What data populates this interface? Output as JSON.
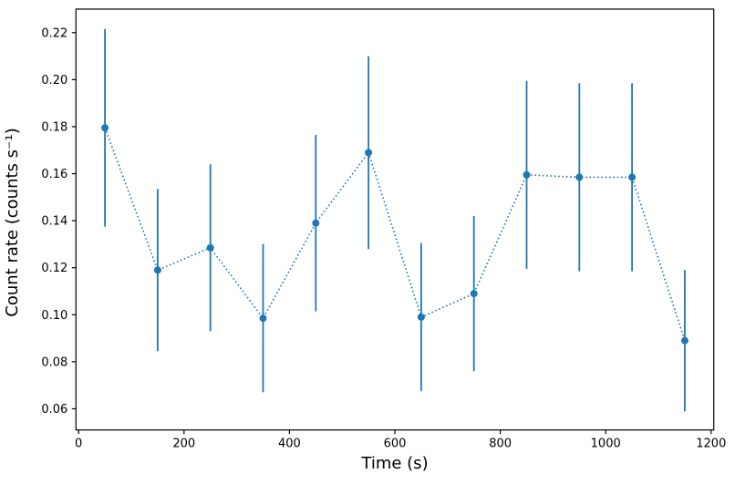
{
  "figure": {
    "background": "#ffffff",
    "spine_color": "#000000",
    "tick_color": "#000000",
    "text_color": "#000000"
  },
  "chart_data": {
    "type": "line",
    "subtype": "errorbar",
    "title": "",
    "xlabel": "Time (s)",
    "ylabel": "Count rate (counts s⁻¹)",
    "x": [
      50,
      150,
      250,
      350,
      450,
      550,
      650,
      750,
      850,
      950,
      1050,
      1150
    ],
    "series": [
      {
        "name": "count-rate",
        "values": [
          0.1795,
          0.119,
          0.1285,
          0.0985,
          0.139,
          0.169,
          0.099,
          0.109,
          0.1595,
          0.1585,
          0.1585,
          0.089
        ],
        "yerr": [
          0.042,
          0.0345,
          0.0355,
          0.0315,
          0.0375,
          0.041,
          0.0315,
          0.033,
          0.04,
          0.04,
          0.04,
          0.03
        ],
        "color": "#1f77b4",
        "line_style": "dotted",
        "marker": "circle"
      }
    ],
    "xlim": [
      -5,
      1205
    ],
    "ylim": [
      0.051,
      0.23
    ],
    "xticks": [
      0,
      200,
      400,
      600,
      800,
      1000,
      1200
    ],
    "xtick_labels": [
      "0",
      "200",
      "400",
      "600",
      "800",
      "1000",
      "1200"
    ],
    "yticks": [
      0.06,
      0.08,
      0.1,
      0.12,
      0.14,
      0.16,
      0.18,
      0.2,
      0.22
    ],
    "ytick_labels": [
      "0.06",
      "0.08",
      "0.10",
      "0.12",
      "0.14",
      "0.16",
      "0.18",
      "0.20",
      "0.22"
    ],
    "grid": false,
    "legend": "none"
  }
}
